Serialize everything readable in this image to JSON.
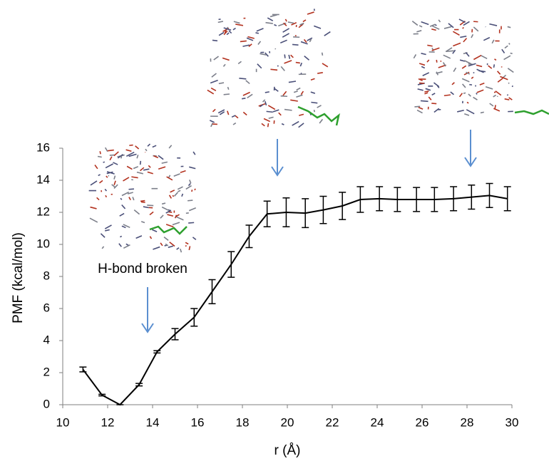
{
  "chart_data": {
    "type": "line",
    "xlabel": "r (Å)",
    "ylabel": "PMF (kcal/mol)",
    "annotations": [
      "H-bond broken"
    ],
    "x": [
      10.9,
      11.75,
      12.55,
      13.4,
      14.2,
      15.0,
      15.85,
      16.65,
      17.5,
      18.3,
      19.1,
      19.95,
      20.8,
      21.6,
      22.45,
      23.25,
      24.1,
      24.9,
      25.75,
      26.55,
      27.4,
      28.2,
      29.0,
      29.8
    ],
    "series": [
      {
        "color": "#000000",
        "values": [
          2.2,
          0.6,
          0.0,
          1.25,
          3.3,
          4.4,
          5.45,
          7.05,
          8.75,
          10.5,
          11.9,
          12.0,
          11.95,
          12.15,
          12.4,
          12.8,
          12.85,
          12.8,
          12.8,
          12.8,
          12.85,
          12.95,
          13.05,
          12.85
        ],
        "errors": [
          0.15,
          0.05,
          0,
          0.08,
          0.07,
          0.35,
          0.55,
          0.75,
          0.8,
          0.7,
          0.8,
          0.9,
          0.9,
          0.85,
          0.85,
          0.8,
          0.75,
          0.75,
          0.75,
          0.75,
          0.75,
          0.75,
          0.75,
          0.75
        ]
      }
    ],
    "xlim": [
      10,
      30
    ],
    "xticks": [
      10,
      12,
      14,
      16,
      18,
      20,
      22,
      24,
      26,
      28,
      30
    ],
    "ylim": [
      0,
      16
    ],
    "yticks": [
      0,
      2,
      4,
      6,
      8,
      10,
      12,
      14,
      16
    ],
    "grid": false
  }
}
